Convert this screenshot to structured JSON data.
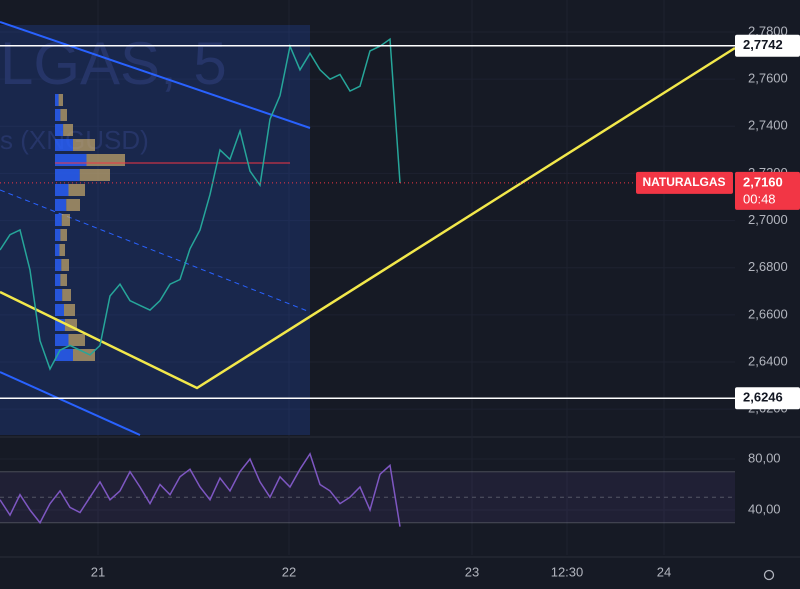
{
  "chart_data": [
    {
      "type": "line",
      "color": "#26a69a",
      "watermark": [
        "LGAS, 5",
        "s (XNGUSD)"
      ],
      "x": [
        0,
        2,
        4,
        6,
        8,
        10,
        12,
        14,
        16,
        18,
        20,
        22,
        24,
        26,
        28,
        30,
        32,
        34,
        36,
        38,
        40,
        42,
        44,
        46,
        48,
        50,
        52,
        54,
        56,
        58,
        60,
        62,
        64,
        66,
        68,
        70,
        72,
        74,
        76,
        78,
        80
      ],
      "values": [
        2.6875,
        2.694,
        2.696,
        2.679,
        2.649,
        2.637,
        2.645,
        2.647,
        2.645,
        2.643,
        2.647,
        2.668,
        2.673,
        2.666,
        2.664,
        2.662,
        2.666,
        2.673,
        2.675,
        2.688,
        2.696,
        2.711,
        2.73,
        2.726,
        2.738,
        2.721,
        2.715,
        2.743,
        2.753,
        2.774,
        2.764,
        2.771,
        2.764,
        2.76,
        2.762,
        2.755,
        2.757,
        2.772,
        2.774,
        2.777,
        2.716
      ],
      "xlim": [
        0,
        147
      ],
      "xticks": [
        {
          "value": 19.6,
          "label": "21"
        },
        {
          "value": 57.8,
          "label": "22"
        },
        {
          "value": 94.4,
          "label": "23"
        },
        {
          "value": 113.4,
          "label": "12:30"
        },
        {
          "value": 132.8,
          "label": "24"
        }
      ],
      "ylim": [
        2.609,
        2.7936
      ],
      "yticks": [
        {
          "value": 2.62,
          "label": "2,6200"
        },
        {
          "value": 2.64,
          "label": "2,6400"
        },
        {
          "value": 2.66,
          "label": "2,6600"
        },
        {
          "value": 2.68,
          "label": "2,6800"
        },
        {
          "value": 2.7,
          "label": "2,7000"
        },
        {
          "value": 2.72,
          "label": "2,7200"
        },
        {
          "value": 2.74,
          "label": "2,7400"
        },
        {
          "value": 2.76,
          "label": "2,7600"
        },
        {
          "value": 2.78,
          "label": "2,7800"
        }
      ],
      "price_lines": [
        {
          "value": 2.7742,
          "label": "2,7742"
        },
        {
          "value": 2.6246,
          "label": "2,6246"
        }
      ],
      "last_price": {
        "name": "NATURALGAS",
        "value": 2.716,
        "label": "2,7160",
        "countdown": "00:48",
        "color": "#f23645"
      }
    },
    {
      "type": "line",
      "color": "#7e57c2",
      "x": [
        0,
        2,
        4,
        6,
        8,
        10,
        12,
        14,
        16,
        18,
        20,
        22,
        24,
        26,
        28,
        30,
        32,
        34,
        36,
        38,
        40,
        42,
        44,
        46,
        48,
        50,
        52,
        54,
        56,
        58,
        60,
        62,
        64,
        66,
        68,
        70,
        72,
        74,
        76,
        78,
        80
      ],
      "values": [
        48,
        36,
        52,
        40,
        30,
        45,
        55,
        42,
        38,
        50,
        62,
        48,
        55,
        70,
        58,
        45,
        60,
        52,
        66,
        72,
        58,
        48,
        65,
        55,
        70,
        80,
        62,
        50,
        66,
        58,
        72,
        84,
        60,
        55,
        45,
        50,
        58,
        40,
        68,
        75,
        27
      ],
      "xlim": [
        0,
        147
      ],
      "ylim": [
        4.7,
        94.9
      ],
      "yticks": [
        {
          "value": 40,
          "label": "40,00"
        },
        {
          "value": 80,
          "label": "80,00"
        }
      ],
      "band": [
        30,
        70
      ],
      "midline": 50
    }
  ]
}
